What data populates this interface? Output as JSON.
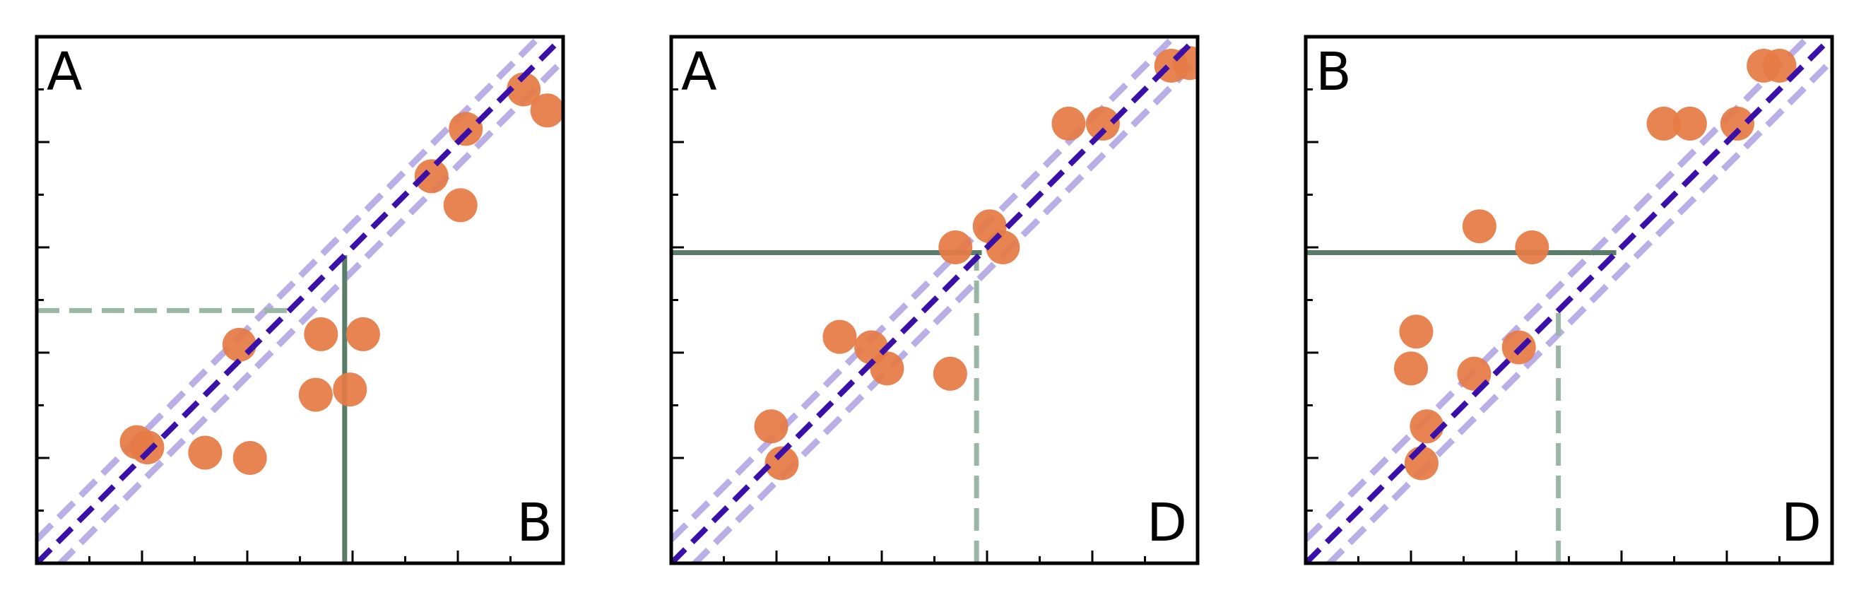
{
  "colors": {
    "points": "#e57b45",
    "diagonal": "#3a10a8",
    "band": "#b9aee6",
    "guide_solid": "#5a7d69",
    "guide_dashed": "#9ab6a5",
    "frame": "#000000"
  },
  "chart_data": [
    {
      "type": "scatter",
      "title": "",
      "xlabel": "",
      "ylabel": "",
      "corner_labels": {
        "top_left": "A",
        "bottom_right": "B"
      },
      "xlim": [
        0,
        10
      ],
      "ylim": [
        0,
        10
      ],
      "grid": false,
      "tick_labels_shown": false,
      "major_ticks": [
        2,
        4,
        6,
        8
      ],
      "minor_ticks": [
        1,
        3,
        5,
        7,
        9
      ],
      "reference_line": {
        "slope": 1,
        "intercept": 0,
        "style": "dashed"
      },
      "band_offsets": [
        -0.45,
        0.45
      ],
      "points": [
        {
          "x": 1.9,
          "y": 2.3
        },
        {
          "x": 2.1,
          "y": 2.2
        },
        {
          "x": 3.2,
          "y": 2.1
        },
        {
          "x": 4.05,
          "y": 2.0
        },
        {
          "x": 3.85,
          "y": 4.15
        },
        {
          "x": 5.3,
          "y": 3.2
        },
        {
          "x": 5.4,
          "y": 4.35
        },
        {
          "x": 5.95,
          "y": 3.3
        },
        {
          "x": 6.2,
          "y": 4.35
        },
        {
          "x": 7.5,
          "y": 7.35
        },
        {
          "x": 8.05,
          "y": 6.8
        },
        {
          "x": 8.15,
          "y": 8.25
        },
        {
          "x": 9.25,
          "y": 9.0
        },
        {
          "x": 9.7,
          "y": 8.6
        }
      ],
      "guides": [
        {
          "style": "dashed",
          "from": [
            0,
            4.8
          ],
          "to": [
            4.8,
            4.8
          ]
        },
        {
          "style": "solid",
          "from": [
            5.85,
            0
          ],
          "to": [
            5.85,
            5.85
          ]
        }
      ]
    },
    {
      "type": "scatter",
      "title": "",
      "xlabel": "",
      "ylabel": "",
      "corner_labels": {
        "top_left": "A",
        "bottom_right": "D"
      },
      "xlim": [
        0,
        10
      ],
      "ylim": [
        0,
        10
      ],
      "grid": false,
      "tick_labels_shown": false,
      "major_ticks": [
        2,
        4,
        6,
        8
      ],
      "minor_ticks": [
        1,
        3,
        5,
        7,
        9
      ],
      "reference_line": {
        "slope": 1,
        "intercept": 0,
        "style": "dashed"
      },
      "band_offsets": [
        -0.45,
        0.45
      ],
      "points": [
        {
          "x": 1.9,
          "y": 2.6
        },
        {
          "x": 2.1,
          "y": 1.9
        },
        {
          "x": 3.2,
          "y": 4.3
        },
        {
          "x": 3.8,
          "y": 4.1
        },
        {
          "x": 4.1,
          "y": 3.7
        },
        {
          "x": 5.3,
          "y": 3.6
        },
        {
          "x": 5.4,
          "y": 6.0
        },
        {
          "x": 6.05,
          "y": 6.4
        },
        {
          "x": 6.3,
          "y": 6.0
        },
        {
          "x": 7.55,
          "y": 8.35
        },
        {
          "x": 8.2,
          "y": 8.35
        },
        {
          "x": 9.5,
          "y": 9.45
        },
        {
          "x": 9.85,
          "y": 9.5
        }
      ],
      "guides": [
        {
          "style": "solid",
          "from": [
            0,
            5.9
          ],
          "to": [
            5.9,
            5.9
          ]
        },
        {
          "style": "dashed",
          "from": [
            5.8,
            0
          ],
          "to": [
            5.8,
            5.8
          ]
        }
      ]
    },
    {
      "type": "scatter",
      "title": "",
      "xlabel": "",
      "ylabel": "",
      "corner_labels": {
        "top_left": "B",
        "bottom_right": "D"
      },
      "xlim": [
        0,
        10
      ],
      "ylim": [
        0,
        10
      ],
      "grid": false,
      "tick_labels_shown": false,
      "major_ticks": [
        2,
        4,
        6,
        8
      ],
      "minor_ticks": [
        1,
        3,
        5,
        7,
        9
      ],
      "reference_line": {
        "slope": 1,
        "intercept": 0,
        "style": "dashed"
      },
      "band_offsets": [
        -0.45,
        0.45
      ],
      "points": [
        {
          "x": 2.2,
          "y": 1.9
        },
        {
          "x": 2.3,
          "y": 2.6
        },
        {
          "x": 2.0,
          "y": 3.7
        },
        {
          "x": 2.1,
          "y": 4.4
        },
        {
          "x": 3.2,
          "y": 3.6
        },
        {
          "x": 3.3,
          "y": 6.4
        },
        {
          "x": 4.05,
          "y": 4.1
        },
        {
          "x": 4.3,
          "y": 6.0
        },
        {
          "x": 6.8,
          "y": 8.35
        },
        {
          "x": 7.3,
          "y": 8.35
        },
        {
          "x": 8.2,
          "y": 8.35
        },
        {
          "x": 8.7,
          "y": 9.45
        },
        {
          "x": 9.0,
          "y": 9.45
        }
      ],
      "guides": [
        {
          "style": "solid",
          "from": [
            0,
            5.9
          ],
          "to": [
            5.9,
            5.9
          ]
        },
        {
          "style": "dashed",
          "from": [
            4.8,
            0
          ],
          "to": [
            4.8,
            4.8
          ]
        }
      ]
    }
  ]
}
